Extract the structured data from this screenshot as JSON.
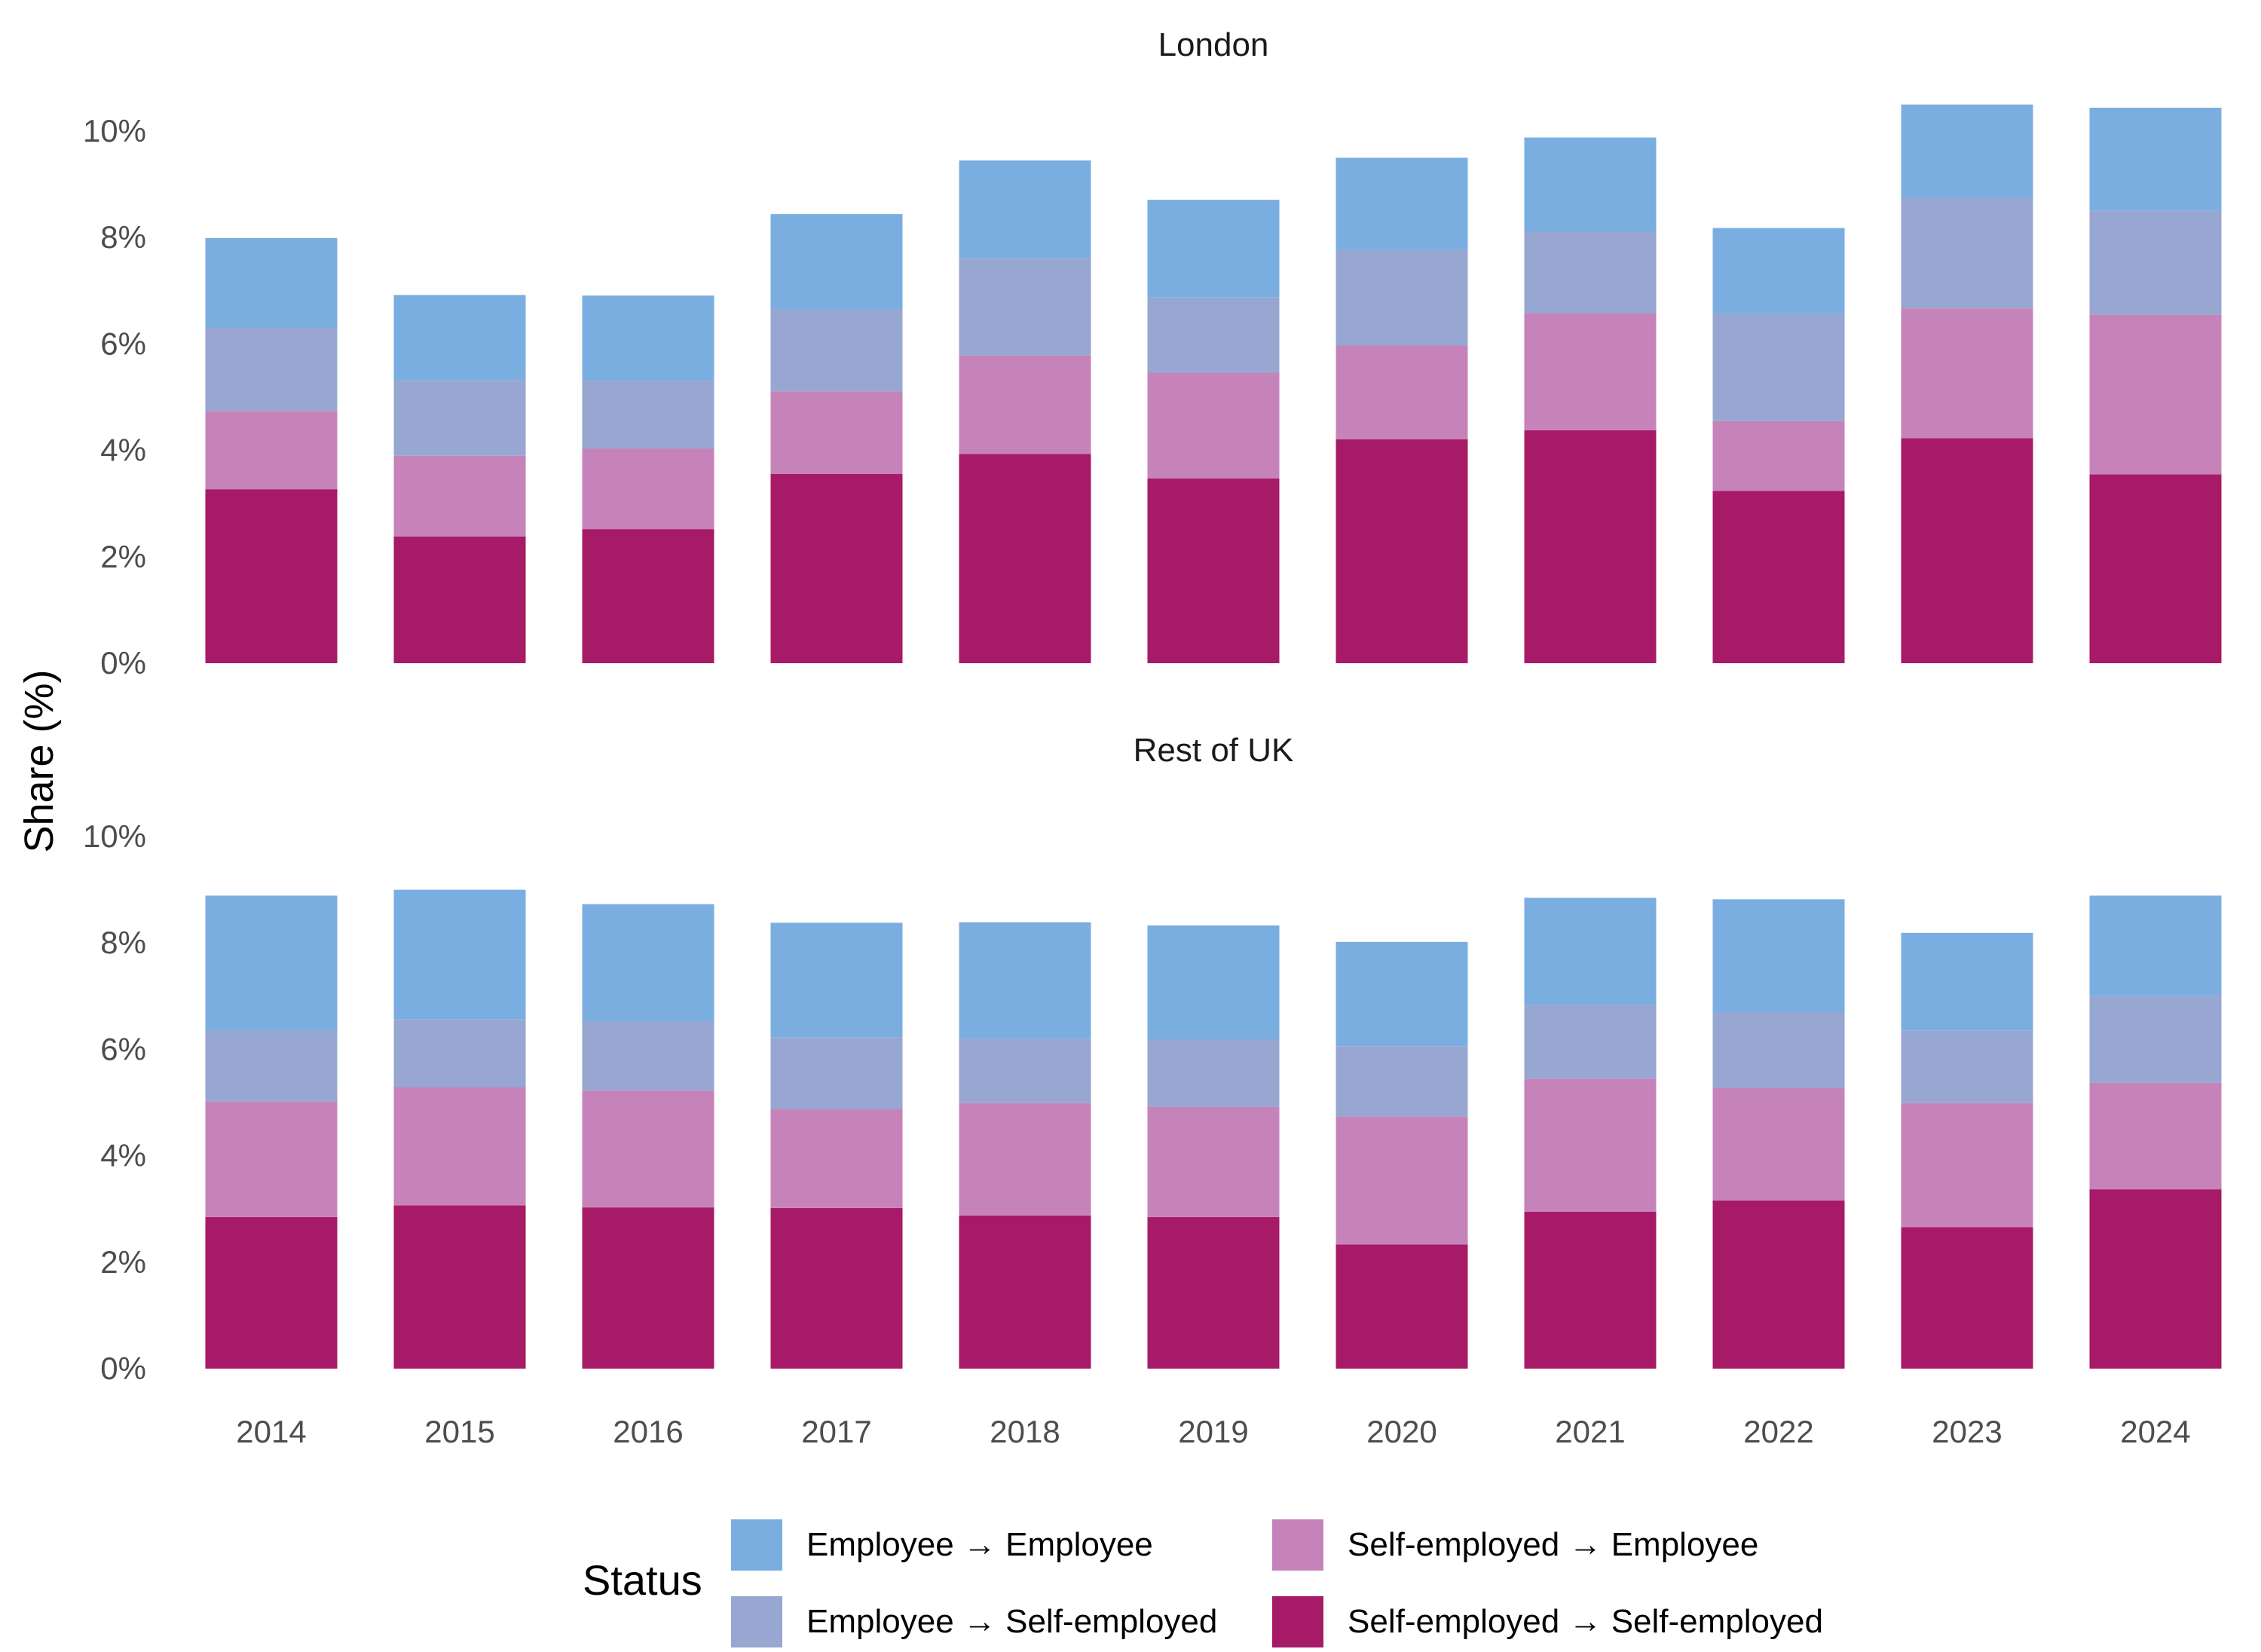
{
  "chart_data": {
    "type": "bar",
    "stacked": true,
    "ylabel": "Share (%)",
    "xlabel": "",
    "categories": [
      "2014",
      "2015",
      "2016",
      "2017",
      "2018",
      "2019",
      "2020",
      "2021",
      "2022",
      "2023",
      "2024"
    ],
    "yticks": [
      "0%",
      "2%",
      "4%",
      "6%",
      "8%",
      "10%"
    ],
    "ylim": [
      0,
      10.5
    ],
    "legend": {
      "title": "Status",
      "position": "bottom"
    },
    "series": [
      {
        "name": "Self-employed → Self-employed",
        "color": "#a71a68"
      },
      {
        "name": "Self-employed → Employee",
        "color": "#c683b9"
      },
      {
        "name": "Employee → Self-employed",
        "color": "#97a7d2"
      },
      {
        "name": "Employee → Employee",
        "color": "#7baee0"
      }
    ],
    "legend_order": [
      3,
      1,
      2,
      0
    ],
    "panels": [
      {
        "title": "London",
        "values": [
          [
            3.27,
            2.38,
            2.52,
            3.56,
            3.93,
            3.47,
            4.21,
            4.38,
            3.24,
            4.23,
            3.55
          ],
          [
            1.47,
            1.52,
            1.51,
            1.55,
            1.85,
            1.99,
            1.76,
            2.2,
            1.31,
            2.44,
            3.0
          ],
          [
            1.57,
            1.42,
            1.28,
            1.54,
            1.83,
            1.42,
            1.8,
            1.53,
            2.03,
            2.09,
            1.95
          ],
          [
            1.68,
            1.6,
            1.6,
            1.79,
            1.84,
            1.83,
            1.73,
            1.77,
            1.6,
            1.74,
            1.94
          ]
        ]
      },
      {
        "title": "Rest of UK",
        "values": [
          [
            2.85,
            3.07,
            3.03,
            3.02,
            2.88,
            2.85,
            2.33,
            2.95,
            3.16,
            2.66,
            3.37
          ],
          [
            2.17,
            2.22,
            2.2,
            1.86,
            2.11,
            2.07,
            2.41,
            2.5,
            2.11,
            2.33,
            2.0
          ],
          [
            1.34,
            1.28,
            1.3,
            1.35,
            1.21,
            1.27,
            1.32,
            1.39,
            1.43,
            1.36,
            1.64
          ],
          [
            2.53,
            2.43,
            2.2,
            2.15,
            2.19,
            2.14,
            1.96,
            2.01,
            2.12,
            1.84,
            1.88
          ]
        ]
      }
    ]
  }
}
